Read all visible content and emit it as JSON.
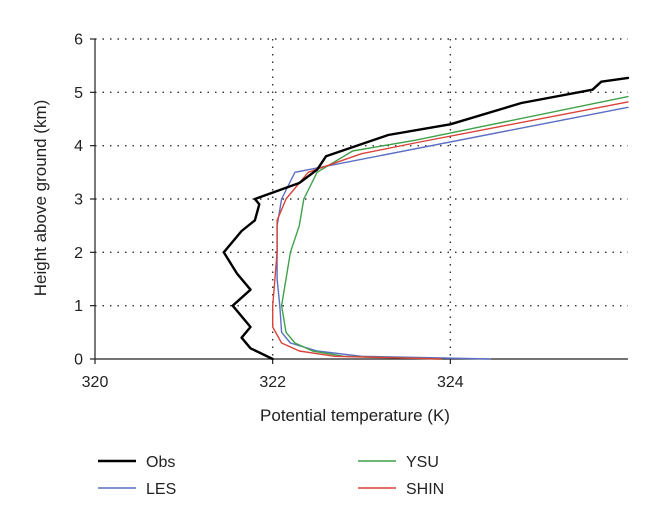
{
  "chart_data": {
    "type": "line",
    "title": "",
    "xlabel": "Potential temperature (K)",
    "ylabel": "Height above ground (km)",
    "xlim": [
      320,
      326
    ],
    "ylim": [
      0,
      6
    ],
    "xticks": [
      320,
      322,
      324
    ],
    "yticks": [
      0,
      1,
      2,
      3,
      4,
      5,
      6
    ],
    "grid": "dotted",
    "legend_position": "bottom",
    "series": [
      {
        "name": "Obs",
        "color": "#000000",
        "points": [
          [
            322.0,
            0.0
          ],
          [
            321.75,
            0.2
          ],
          [
            321.65,
            0.4
          ],
          [
            321.75,
            0.6
          ],
          [
            321.65,
            0.8
          ],
          [
            321.55,
            1.0
          ],
          [
            321.75,
            1.3
          ],
          [
            321.6,
            1.6
          ],
          [
            321.45,
            2.0
          ],
          [
            321.65,
            2.4
          ],
          [
            321.8,
            2.6
          ],
          [
            321.85,
            2.9
          ],
          [
            321.8,
            3.0
          ],
          [
            322.3,
            3.3
          ],
          [
            322.5,
            3.55
          ],
          [
            322.6,
            3.8
          ],
          [
            323.3,
            4.2
          ],
          [
            324.0,
            4.4
          ],
          [
            324.8,
            4.8
          ],
          [
            325.6,
            5.05
          ],
          [
            325.7,
            5.2
          ],
          [
            326.0,
            5.27
          ]
        ]
      },
      {
        "name": "LES",
        "color": "#5a6fc4",
        "points": [
          [
            324.45,
            0.0
          ],
          [
            323.0,
            0.05
          ],
          [
            322.5,
            0.15
          ],
          [
            322.2,
            0.3
          ],
          [
            322.1,
            0.5
          ],
          [
            322.08,
            1.0
          ],
          [
            322.05,
            1.5
          ],
          [
            322.05,
            2.0
          ],
          [
            322.05,
            2.5
          ],
          [
            322.1,
            3.0
          ],
          [
            322.25,
            3.5
          ],
          [
            326.0,
            4.72
          ]
        ]
      },
      {
        "name": "YSU",
        "color": "#3fa14a",
        "points": [
          [
            323.9,
            0.0
          ],
          [
            322.8,
            0.05
          ],
          [
            322.45,
            0.15
          ],
          [
            322.25,
            0.3
          ],
          [
            322.15,
            0.5
          ],
          [
            322.1,
            1.0
          ],
          [
            322.15,
            1.5
          ],
          [
            322.2,
            2.0
          ],
          [
            322.3,
            2.5
          ],
          [
            322.35,
            3.0
          ],
          [
            322.5,
            3.5
          ],
          [
            322.9,
            3.9
          ],
          [
            323.6,
            4.1
          ],
          [
            326.0,
            4.92
          ]
        ]
      },
      {
        "name": "SHIN",
        "color": "#d9433a",
        "points": [
          [
            323.9,
            0.0
          ],
          [
            322.7,
            0.05
          ],
          [
            322.3,
            0.15
          ],
          [
            322.1,
            0.3
          ],
          [
            322.0,
            0.6
          ],
          [
            322.0,
            1.0
          ],
          [
            322.05,
            2.0
          ],
          [
            322.05,
            2.6
          ],
          [
            322.15,
            3.0
          ],
          [
            322.4,
            3.5
          ],
          [
            323.0,
            3.85
          ],
          [
            323.6,
            4.05
          ],
          [
            326.0,
            4.82
          ]
        ]
      }
    ]
  }
}
